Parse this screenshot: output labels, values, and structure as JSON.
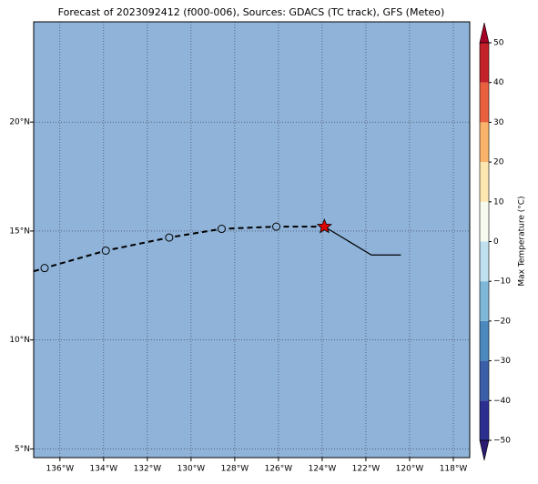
{
  "chart_data": {
    "type": "map",
    "title": "Forecast of 2023092412 (f000-006), Sources: GDACS (TC track), GFS (Meteo)",
    "background": "#8fb3d9",
    "grid": true,
    "xlim": [
      -137.2,
      -117.25
    ],
    "ylim": [
      4.6,
      24.6
    ],
    "xticks": [
      {
        "value": -136,
        "label": "136°W"
      },
      {
        "value": -134,
        "label": "134°W"
      },
      {
        "value": -132,
        "label": "132°W"
      },
      {
        "value": -130,
        "label": "130°W"
      },
      {
        "value": -128,
        "label": "128°W"
      },
      {
        "value": -126,
        "label": "126°W"
      },
      {
        "value": -124,
        "label": "124°W"
      },
      {
        "value": -122,
        "label": "122°W"
      },
      {
        "value": -120,
        "label": "120°W"
      },
      {
        "value": -118,
        "label": "118°W"
      }
    ],
    "yticks": [
      {
        "value": 5,
        "label": "5°N"
      },
      {
        "value": 10,
        "label": "10°N"
      },
      {
        "value": 15,
        "label": "15°N"
      },
      {
        "value": 20,
        "label": "20°N"
      }
    ],
    "series": [
      {
        "style": "dashed",
        "x": [
          -137.2,
          -136.7,
          -133.9,
          -131.0,
          -128.6,
          -126.1,
          -123.9
        ],
        "y": [
          13.15,
          13.3,
          14.1,
          14.7,
          15.1,
          15.2,
          15.2
        ]
      },
      {
        "style": "solid",
        "x": [
          -123.9,
          -121.75,
          -120.4
        ],
        "y": [
          15.2,
          13.9,
          13.9
        ]
      },
      {
        "style": "circles",
        "x": [
          -136.7,
          -133.9,
          -131.0,
          -128.6,
          -126.1
        ],
        "y": [
          13.3,
          14.1,
          14.7,
          15.1,
          15.2
        ]
      },
      {
        "style": "star",
        "color": "#e00000",
        "x": [
          -123.9
        ],
        "y": [
          15.2
        ]
      }
    ],
    "colorbar": {
      "label": "Max Temperature (°C)",
      "ticks": [
        {
          "value": -50,
          "label": "−50"
        },
        {
          "value": -40,
          "label": "−40"
        },
        {
          "value": -30,
          "label": "−30"
        },
        {
          "value": -20,
          "label": "−20"
        },
        {
          "value": -10,
          "label": "−10"
        },
        0,
        10,
        20,
        30,
        40,
        50
      ],
      "colors": [
        "#2c2f90",
        "#3a5ea8",
        "#4a88be",
        "#7fb7d8",
        "#bfe0ee",
        "#f7fbef",
        "#fde7b0",
        "#f9b36b",
        "#e9603f",
        "#c3222a"
      ],
      "under": "#2b1a72",
      "over": "#a50026"
    }
  }
}
